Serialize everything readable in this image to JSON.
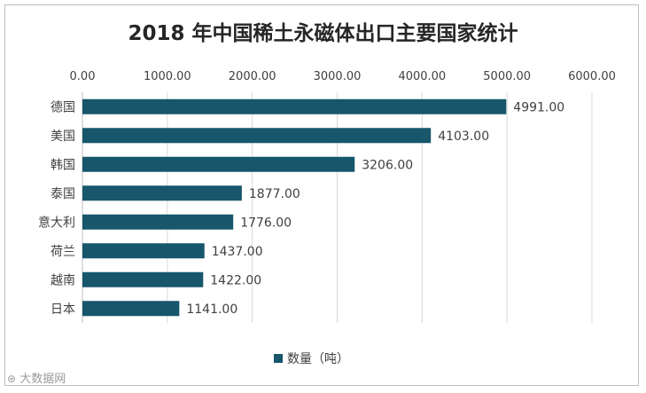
{
  "chart_data": {
    "type": "bar",
    "orientation": "horizontal",
    "title": "2018 年中国稀土永磁体出口主要国家统计",
    "categories": [
      "德国",
      "美国",
      "韩国",
      "泰国",
      "意大利",
      "荷兰",
      "越南",
      "日本"
    ],
    "series": [
      {
        "name": "数量（吨）",
        "values": [
          4991.0,
          4103.0,
          3206.0,
          1877.0,
          1776.0,
          1437.0,
          1422.0,
          1141.0
        ],
        "labels": [
          "4991.00",
          "4103.00",
          "3206.00",
          "1877.00",
          "1776.00",
          "1437.00",
          "1422.00",
          "1141.00"
        ]
      }
    ],
    "xticks": [
      "0.00",
      "1000.00",
      "2000.00",
      "3000.00",
      "4000.00",
      "5000.00",
      "6000.00"
    ],
    "xlim": [
      0,
      6000
    ],
    "xaxis_position": "top",
    "grid": true,
    "legend_position": "bottom"
  },
  "colors": {
    "bar": "#17566b",
    "grid": "#d9d9d9",
    "text": "#404040"
  },
  "watermark": {
    "text": "大数据网",
    "icon": "brand-logo-icon"
  }
}
